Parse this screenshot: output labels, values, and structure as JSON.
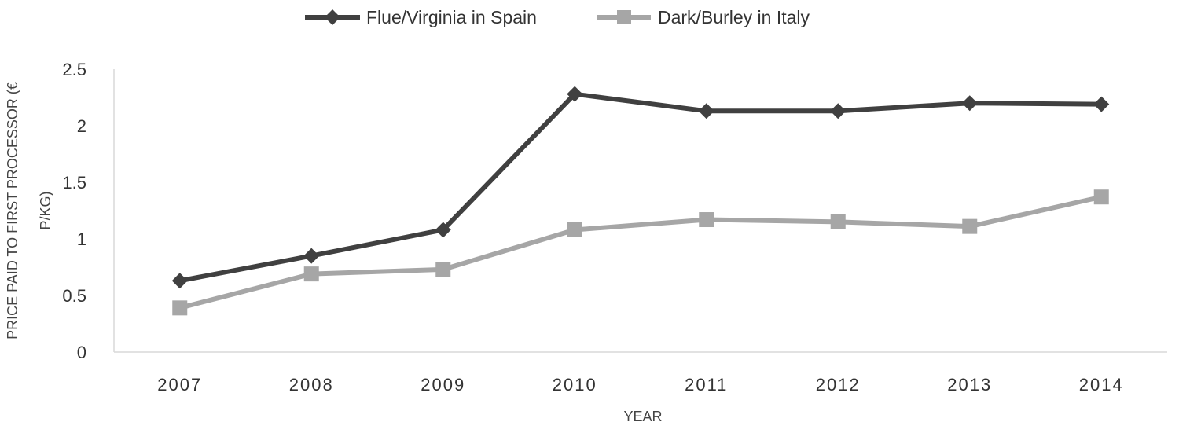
{
  "chart_data": {
    "type": "line",
    "title": "",
    "xlabel": "YEAR",
    "ylabel": "PRICE PAID TO FIRST PROCESSOR (€ P/KG)",
    "ylabel_lines": [
      "PRICE PAID TO FIRST PROCESSOR (€",
      "P/KG)"
    ],
    "categories": [
      "2007",
      "2008",
      "2009",
      "2010",
      "2011",
      "2012",
      "2013",
      "2014"
    ],
    "yticks": [
      "0",
      "0.5",
      "1",
      "1.5",
      "2",
      "2.5"
    ],
    "ylim": [
      0,
      2.5
    ],
    "grid": false,
    "legend_position": "top",
    "series": [
      {
        "name": "Flue/Virginia in Spain",
        "marker": "diamond",
        "color": "#404040",
        "values": [
          0.63,
          0.85,
          1.08,
          2.28,
          2.13,
          2.13,
          2.2,
          2.19
        ]
      },
      {
        "name": "Dark/Burley in Italy",
        "marker": "square",
        "color": "#a6a6a6",
        "values": [
          0.39,
          0.69,
          0.73,
          1.08,
          1.17,
          1.15,
          1.11,
          1.37
        ]
      }
    ]
  }
}
